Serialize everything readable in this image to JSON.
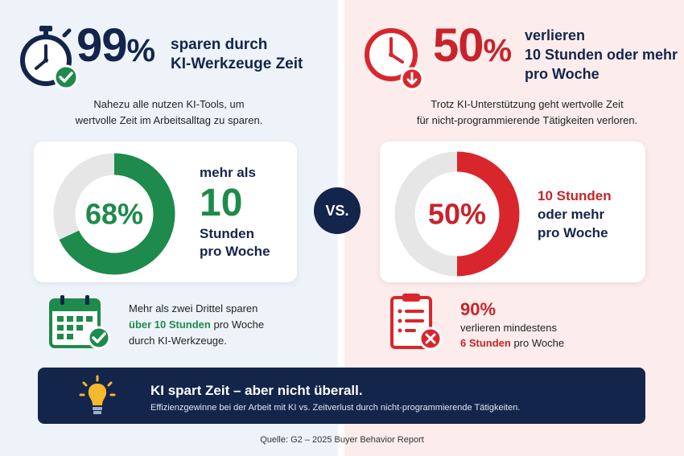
{
  "left": {
    "headline_value": "99",
    "headline_unit": "%",
    "headline_text_1": "sparen durch",
    "headline_text_2": "KI-Werkzeuge Zeit",
    "sub_1": "Nahezu alle nutzen KI-Tools, um",
    "sub_2": "wertvolle Zeit im Arbeitsalltag zu sparen.",
    "donut_label": "68%",
    "stat_1": "mehr als",
    "stat_2": "10",
    "stat_3": "Stunden",
    "stat_4": "pro Woche",
    "footer_1": "Mehr als zwei Drittel sparen",
    "footer_2_em": "über 10 Stunden",
    "footer_2_rest": " pro Woche",
    "footer_3": "durch KI-Werkzeuge.",
    "accent_color": "#1e8a4b"
  },
  "vs_label": "VS.",
  "right": {
    "headline_value": "50",
    "headline_unit": "%",
    "headline_text_1": "verlieren",
    "headline_text_2": "10 Stunden oder mehr",
    "headline_text_3": "pro Woche",
    "sub_1": "Trotz KI-Unterstützung geht wertvolle Zeit",
    "sub_2": "für nicht-programmierende Tätigkeiten verloren.",
    "donut_label": "50%",
    "stat_1": "10 Stunden",
    "stat_2": "oder mehr",
    "stat_3": "pro Woche",
    "footer_big": "90%",
    "footer_1": "verlieren mindestens",
    "footer_2_em": "6 Stunden",
    "footer_2_rest": " pro Woche",
    "accent_color": "#d9262c"
  },
  "banner": {
    "title": "KI spart Zeit – aber nicht überall.",
    "subtitle": "Effizienzgewinne bei der Arbeit mit KI vs. Zeitverlust durch nicht-programmierende Tätigkeiten."
  },
  "source": "Quelle: G2 – 2025 Buyer Behavior Report",
  "icons": {
    "left_top": "stopwatch-check-icon",
    "right_top": "clock-down-icon",
    "left_bottom": "calendar-check-icon",
    "right_bottom": "clipboard-x-icon",
    "banner": "lightbulb-icon"
  },
  "chart_data": [
    {
      "type": "pie",
      "categories": [
        "mehr als 10 Stunden pro Woche",
        "Rest"
      ],
      "values": [
        68,
        32
      ],
      "unit": "%",
      "colors": [
        "#1e8a4b",
        "#e6e6e6"
      ],
      "donut": true
    },
    {
      "type": "pie",
      "categories": [
        "10 Stunden oder mehr pro Woche",
        "Rest"
      ],
      "values": [
        50,
        50
      ],
      "unit": "%",
      "colors": [
        "#d9262c",
        "#e6e6e6"
      ],
      "donut": true
    }
  ]
}
